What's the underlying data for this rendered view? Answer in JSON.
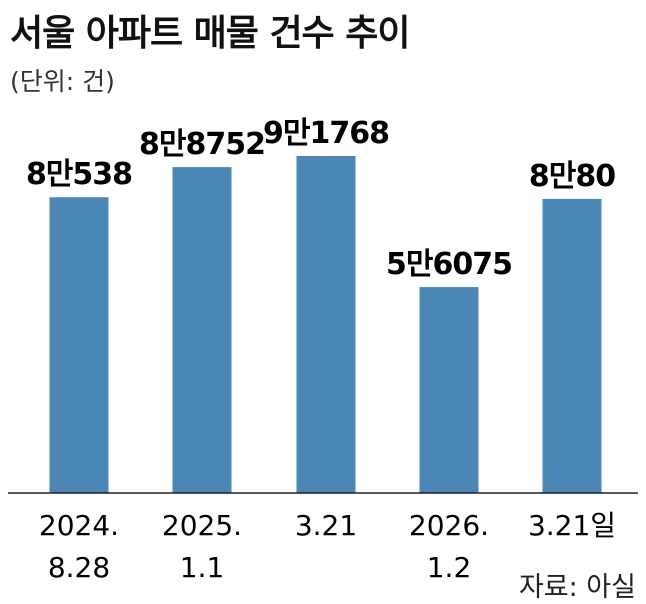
{
  "chart_data": {
    "type": "bar",
    "title": "서울 아파트 매물 건수 추이",
    "unit_label": "(단위: 건)",
    "source": "자료: 아실",
    "categories": [
      [
        "2024.",
        "8.28"
      ],
      [
        "2025.",
        "1.1"
      ],
      [
        "3.21"
      ],
      [
        "2026.",
        "1.2"
      ],
      [
        "3.21일"
      ]
    ],
    "values": [
      80538,
      88752,
      91768,
      56075,
      80080
    ],
    "value_labels": [
      "8만538",
      "8만8752",
      "9만1768",
      "5만6075",
      "8만80"
    ],
    "bar_color": "#4a87b5",
    "ylim": [
      0,
      91768
    ],
    "grid": false,
    "legend": "none"
  }
}
